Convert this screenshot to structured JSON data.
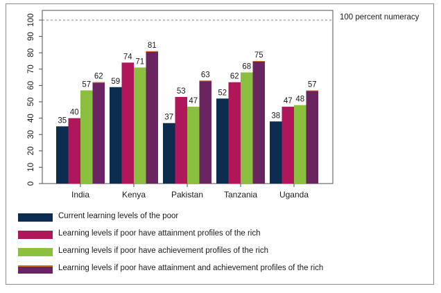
{
  "chart_data": {
    "type": "bar",
    "categories": [
      "India",
      "Kenya",
      "Pakistan",
      "Tanzania",
      "Uganda"
    ],
    "series": [
      {
        "name": "Current learning levels of the poor",
        "color": "#0c2d4f",
        "values": [
          35,
          59,
          37,
          52,
          38
        ]
      },
      {
        "name": "Learning levels if poor have attainment profiles of the rich",
        "color": "#b0175a",
        "values": [
          40,
          74,
          53,
          62,
          47
        ]
      },
      {
        "name": "Learning levels if poor have achievement profiles of the rich",
        "color": "#8bbf3f",
        "values": [
          57,
          71,
          47,
          68,
          48
        ]
      },
      {
        "name": "Learning levels if poor have attainment and achievement profiles of the rich",
        "color": "#6a2460",
        "values": [
          62,
          81,
          63,
          75,
          57
        ]
      }
    ],
    "ylim": [
      0,
      100
    ],
    "yticks": [
      0,
      10,
      20,
      30,
      40,
      50,
      60,
      70,
      80,
      90,
      100
    ],
    "reference_line": {
      "value": 100,
      "label": "100 percent numeracy",
      "style": "dashed"
    },
    "legend_position": "bottom",
    "grid": false,
    "title": "",
    "xlabel": "",
    "ylabel": ""
  }
}
